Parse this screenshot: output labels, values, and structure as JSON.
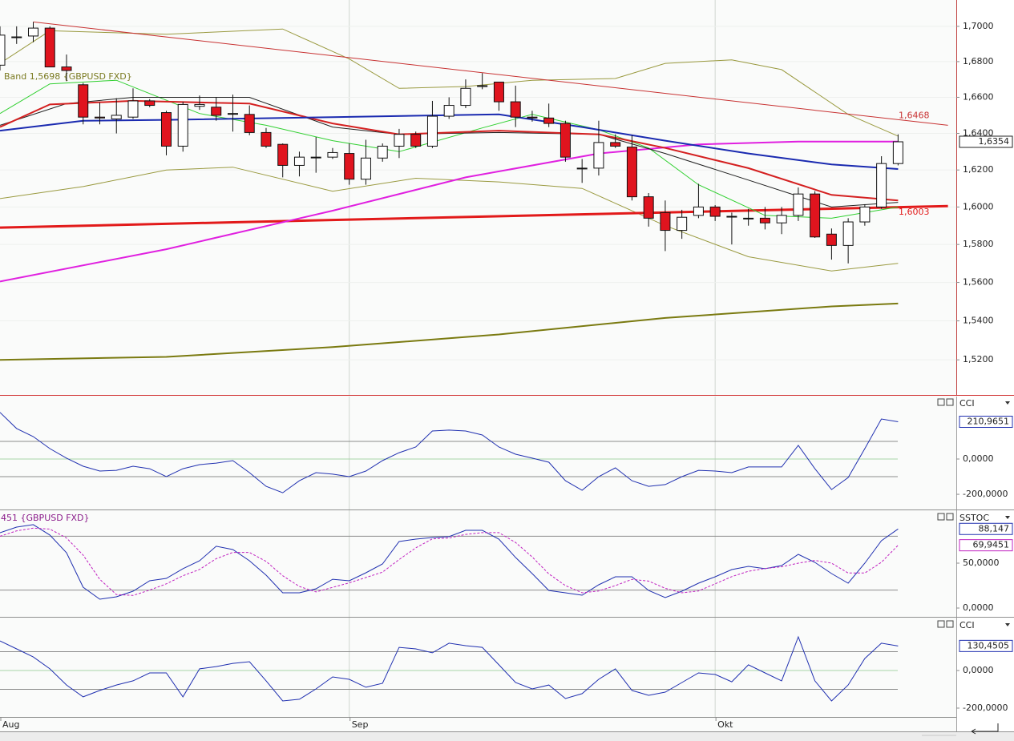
{
  "chart_data": [
    {
      "type": "candlestick",
      "log_scale": true,
      "grid": true,
      "legend": "Band 1,5698 {GBPUSD FXD}",
      "last_label": "1,6354",
      "up_color": "#ffffff",
      "down_color": "#e0141e",
      "xlim": [
        0,
        57.5
      ],
      "ylim": [
        1.5022,
        1.7151
      ],
      "yticks": [
        {
          "value": 1.7,
          "label": "1,7000"
        },
        {
          "value": 1.68,
          "label": "1,6800"
        },
        {
          "value": 1.66,
          "label": "1,6600"
        },
        {
          "value": 1.64,
          "label": "1,6400"
        },
        {
          "value": 1.62,
          "label": "1,6200"
        },
        {
          "value": 1.6,
          "label": "1,6000"
        },
        {
          "value": 1.58,
          "label": "1,5800"
        },
        {
          "value": 1.56,
          "label": "1,5600"
        },
        {
          "value": 1.54,
          "label": "1,5400"
        },
        {
          "value": 1.52,
          "label": "1,5200"
        }
      ],
      "x": [
        0,
        1,
        2,
        3,
        4,
        5,
        6,
        7,
        8,
        9,
        10,
        11,
        12,
        13,
        14,
        15,
        16,
        17,
        18,
        19,
        20,
        21,
        22,
        23,
        24,
        25,
        26,
        27,
        28,
        29,
        30,
        31,
        32,
        33,
        34,
        35,
        36,
        37,
        38,
        39,
        40,
        41,
        42,
        43,
        44,
        45,
        46,
        47,
        48,
        49,
        50,
        51,
        52,
        53,
        54
      ],
      "open": [
        1.678,
        1.694,
        1.6945,
        1.699,
        1.677,
        1.667,
        1.649,
        1.648,
        1.649,
        1.658,
        1.6515,
        1.633,
        1.655,
        1.6545,
        1.651,
        1.6505,
        1.6405,
        1.634,
        1.6225,
        1.627,
        1.627,
        1.629,
        1.615,
        1.6265,
        1.633,
        1.6395,
        1.633,
        1.6495,
        1.6555,
        1.666,
        1.6685,
        1.6575,
        1.649,
        1.6485,
        1.6455,
        1.621,
        1.621,
        1.635,
        1.6325,
        1.6055,
        1.597,
        1.5875,
        1.5955,
        1.6,
        1.595,
        1.594,
        1.594,
        1.5915,
        1.5955,
        1.607,
        1.5855,
        1.5795,
        1.592,
        1.6,
        1.6235
      ],
      "high": [
        1.7,
        1.7,
        1.7025,
        1.7,
        1.684,
        1.668,
        1.657,
        1.6595,
        1.665,
        1.659,
        1.6525,
        1.6575,
        1.661,
        1.66,
        1.6615,
        1.6555,
        1.643,
        1.6345,
        1.63,
        1.638,
        1.632,
        1.6345,
        1.6365,
        1.6345,
        1.6425,
        1.641,
        1.658,
        1.66,
        1.67,
        1.6735,
        1.6685,
        1.6665,
        1.6525,
        1.6565,
        1.647,
        1.626,
        1.647,
        1.6395,
        1.639,
        1.6075,
        1.6035,
        1.5985,
        1.6125,
        1.601,
        1.597,
        1.599,
        1.6,
        1.6,
        1.6105,
        1.6085,
        1.5885,
        1.594,
        1.6015,
        1.6275,
        1.6395
      ],
      "low": [
        1.675,
        1.69,
        1.691,
        1.677,
        1.669,
        1.645,
        1.645,
        1.64,
        1.648,
        1.6545,
        1.628,
        1.63,
        1.653,
        1.647,
        1.641,
        1.639,
        1.632,
        1.616,
        1.6165,
        1.6185,
        1.626,
        1.612,
        1.612,
        1.6245,
        1.6265,
        1.632,
        1.632,
        1.648,
        1.654,
        1.6645,
        1.6525,
        1.6435,
        1.6465,
        1.6435,
        1.6245,
        1.613,
        1.617,
        1.632,
        1.6035,
        1.5895,
        1.5765,
        1.583,
        1.594,
        1.5925,
        1.58,
        1.59,
        1.588,
        1.5855,
        1.5925,
        1.5835,
        1.572,
        1.57,
        1.59,
        1.599,
        1.6225
      ],
      "close": [
        1.695,
        1.694,
        1.699,
        1.677,
        1.675,
        1.649,
        1.6485,
        1.65,
        1.658,
        1.6555,
        1.633,
        1.656,
        1.656,
        1.65,
        1.651,
        1.6405,
        1.633,
        1.6225,
        1.627,
        1.627,
        1.6295,
        1.615,
        1.6265,
        1.633,
        1.6395,
        1.633,
        1.6495,
        1.6555,
        1.665,
        1.6665,
        1.6575,
        1.649,
        1.6485,
        1.6455,
        1.627,
        1.621,
        1.635,
        1.633,
        1.6055,
        1.594,
        1.5875,
        1.5945,
        1.6,
        1.595,
        1.595,
        1.594,
        1.5915,
        1.5955,
        1.607,
        1.584,
        1.5795,
        1.592,
        1.6,
        1.6235,
        1.6354
      ],
      "overlays": [
        {
          "color": "#7a7a10",
          "line_width": 2,
          "x": [
            0,
            10,
            20,
            30,
            40,
            50,
            54
          ],
          "values": [
            1.52,
            1.5215,
            1.5265,
            1.533,
            1.5415,
            1.5475,
            1.549
          ]
        },
        {
          "color": "#9a9a40",
          "line_width": 1,
          "x": [
            0,
            3,
            10,
            17,
            21,
            24,
            28,
            32,
            37,
            40,
            44,
            47,
            51,
            54
          ],
          "values": [
            1.679,
            1.6975,
            1.6955,
            1.6985,
            1.6815,
            1.665,
            1.666,
            1.6695,
            1.6705,
            1.679,
            1.681,
            1.6755,
            1.6505,
            1.6385
          ]
        },
        {
          "color": "#9a9a40",
          "line_width": 1,
          "x": [
            0,
            5,
            10,
            14,
            20,
            25,
            30,
            35,
            40,
            45,
            50,
            54
          ],
          "values": [
            1.6045,
            1.611,
            1.62,
            1.6215,
            1.6085,
            1.6155,
            1.6135,
            1.61,
            1.59,
            1.5735,
            1.566,
            1.57
          ]
        },
        {
          "color": "#c83232",
          "line_width": 1,
          "end_label": "1,6468",
          "x": [
            2,
            57
          ],
          "values": [
            1.7025,
            1.6445
          ]
        },
        {
          "color": "#e21a1a",
          "line_width": 3,
          "end_label": "1,6003",
          "x": [
            0,
            57
          ],
          "values": [
            1.589,
            1.6005
          ]
        },
        {
          "color": "#e020e0",
          "line_width": 2,
          "x": [
            0,
            10,
            20,
            28,
            36,
            42,
            48,
            54
          ],
          "values": [
            1.5605,
            1.5775,
            1.598,
            1.616,
            1.629,
            1.634,
            1.6355,
            1.6355
          ]
        },
        {
          "color": "#30d030",
          "line_width": 1,
          "x": [
            0,
            3,
            7,
            12,
            16,
            20,
            24,
            29,
            32,
            36,
            39,
            42,
            46,
            50,
            54
          ],
          "values": [
            1.651,
            1.6675,
            1.6695,
            1.651,
            1.6445,
            1.636,
            1.63,
            1.643,
            1.6505,
            1.642,
            1.632,
            1.612,
            1.5955,
            1.594,
            1.6
          ]
        },
        {
          "color": "#202020",
          "line_width": 1,
          "x": [
            0,
            4,
            8,
            15,
            20,
            24,
            30,
            36,
            40,
            45,
            50,
            54
          ],
          "values": [
            1.6445,
            1.6565,
            1.66,
            1.66,
            1.6435,
            1.6395,
            1.6405,
            1.6395,
            1.629,
            1.6145,
            1.6,
            1.6025
          ]
        },
        {
          "color": "#d42020",
          "line_width": 2,
          "x": [
            0,
            3,
            8,
            15,
            20,
            24,
            30,
            36,
            40,
            45,
            50,
            54
          ],
          "values": [
            1.6435,
            1.656,
            1.658,
            1.6565,
            1.6455,
            1.6395,
            1.6415,
            1.6395,
            1.632,
            1.621,
            1.6065,
            1.6035
          ]
        },
        {
          "color": "#1a2ab0",
          "line_width": 2,
          "x": [
            0,
            5,
            10,
            20,
            30,
            35,
            40,
            45,
            50,
            54
          ],
          "values": [
            1.6415,
            1.647,
            1.6475,
            1.649,
            1.6505,
            1.6435,
            1.636,
            1.629,
            1.623,
            1.6205
          ]
        }
      ]
    },
    {
      "type": "line",
      "title": "CCI",
      "xlim": [
        0,
        57.5
      ],
      "ylim": [
        -286,
        354
      ],
      "yticks": [
        {
          "value": 0,
          "label": "0,0000"
        },
        {
          "value": -200,
          "label": "-200,0000"
        }
      ],
      "levels": [
        100,
        0,
        -100
      ],
      "level_colors": [
        "#8c8c8c",
        "#a8d4a8",
        "#8c8c8c"
      ],
      "x": [
        0,
        1,
        2,
        3,
        4,
        5,
        6,
        7,
        8,
        9,
        10,
        11,
        12,
        13,
        14,
        15,
        16,
        17,
        18,
        19,
        20,
        21,
        22,
        23,
        24,
        25,
        26,
        27,
        28,
        29,
        30,
        31,
        32,
        33,
        34,
        35,
        36,
        37,
        38,
        39,
        40,
        41,
        42,
        43,
        44,
        45,
        46,
        47,
        48,
        49,
        50,
        51,
        52,
        53,
        54
      ],
      "series": [
        {
          "color": "#2030b0",
          "last_label": "210,9651",
          "values": [
            264,
            173,
            127,
            59,
            5,
            -41,
            -68,
            -64,
            -41,
            -55,
            -100,
            -55,
            -32,
            -23,
            -9,
            -77,
            -155,
            -191,
            -123,
            -77,
            -86,
            -100,
            -68,
            -9,
            36,
            68,
            159,
            164,
            159,
            136,
            68,
            27,
            5,
            -18,
            -123,
            -177,
            -100,
            -50,
            -123,
            -155,
            -145,
            -100,
            -64,
            -68,
            -77,
            -45,
            -45,
            -45,
            77,
            -55,
            -173,
            -105,
            59,
            227,
            210.9651
          ]
        }
      ]
    },
    {
      "type": "line",
      "title": "SSTOC",
      "legend": "451 {GBPUSD FXD}",
      "xlim": [
        0,
        57.5
      ],
      "ylim": [
        -9.8,
        108.9
      ],
      "yticks": [
        {
          "value": 50,
          "label": "50,0000"
        },
        {
          "value": 0,
          "label": "0,0000"
        }
      ],
      "levels": [
        80,
        20
      ],
      "level_colors": [
        "#8c8c8c",
        "#8c8c8c"
      ],
      "x": [
        0,
        1,
        2,
        3,
        4,
        5,
        6,
        7,
        8,
        9,
        10,
        11,
        12,
        13,
        14,
        15,
        16,
        17,
        18,
        19,
        20,
        21,
        22,
        23,
        24,
        25,
        26,
        27,
        28,
        29,
        30,
        31,
        32,
        33,
        34,
        35,
        36,
        37,
        38,
        39,
        40,
        41,
        42,
        43,
        44,
        45,
        46,
        47,
        48,
        49,
        50,
        51,
        52,
        53,
        54
      ],
      "series": [
        {
          "color": "#2030b0",
          "last_label": "88,147",
          "values": [
            83.9,
            90.2,
            92.9,
            81.3,
            61.6,
            23.2,
            9.8,
            12.5,
            18.8,
            30.4,
            33.0,
            43.8,
            52.7,
            68.8,
            65.2,
            52.7,
            36.6,
            17.0,
            17.0,
            21.4,
            32.1,
            30.4,
            39.3,
            49.1,
            74.1,
            76.8,
            78.6,
            79.5,
            86.6,
            86.6,
            76.8,
            56.3,
            38.4,
            19.6,
            17.0,
            14.3,
            25.9,
            34.8,
            34.8,
            19.6,
            11.6,
            18.8,
            27.7,
            34.8,
            42.9,
            46.4,
            43.8,
            47.3,
            59.8,
            50.9,
            38.4,
            27.7,
            50.0,
            75.0,
            88.147
          ]
        },
        {
          "color": "#c020c0",
          "dashed": true,
          "last_label": "69,9451",
          "values": [
            80,
            86,
            89,
            88,
            78,
            59,
            32,
            15,
            14,
            20,
            27,
            36,
            43,
            55,
            62,
            62,
            52,
            36,
            24,
            18,
            23,
            28,
            34,
            40,
            54,
            67,
            77,
            78,
            82,
            84,
            84,
            73,
            57,
            38,
            25,
            17,
            19,
            25,
            32,
            30,
            22,
            17,
            19,
            27,
            35,
            41,
            44,
            46,
            50,
            53,
            50,
            39,
            39,
            51,
            69.9451
          ]
        }
      ]
    },
    {
      "type": "line",
      "title": "CCI",
      "xlim": [
        0,
        57.5
      ],
      "ylim": [
        -247,
        281
      ],
      "yticks": [
        {
          "value": 0,
          "label": "0,0000"
        },
        {
          "value": -200,
          "label": "-200,0000"
        }
      ],
      "levels": [
        100,
        0,
        -100
      ],
      "level_colors": [
        "#8c8c8c",
        "#a8d4a8",
        "#8c8c8c"
      ],
      "xticks": [
        {
          "value": 0,
          "label": "Aug"
        },
        {
          "value": 21,
          "label": "Sep"
        },
        {
          "value": 43,
          "label": "Okt"
        }
      ],
      "x": [
        0,
        1,
        2,
        3,
        4,
        5,
        6,
        7,
        8,
        9,
        10,
        11,
        12,
        13,
        14,
        15,
        16,
        17,
        18,
        19,
        20,
        21,
        22,
        23,
        24,
        25,
        26,
        27,
        28,
        29,
        30,
        31,
        32,
        33,
        34,
        35,
        36,
        37,
        38,
        39,
        40,
        41,
        42,
        43,
        44,
        45,
        46,
        47,
        48,
        49,
        50,
        51,
        52,
        53,
        54
      ],
      "series": [
        {
          "color": "#2030b0",
          "last_label": "130,4505",
          "values": [
            157,
            115,
            72,
            9,
            -77,
            -140,
            -106,
            -77,
            -55,
            -13,
            -13,
            -140,
            9,
            21,
            38,
            47,
            -55,
            -162,
            -153,
            -98,
            -34,
            -47,
            -89,
            -68,
            123,
            115,
            94,
            145,
            132,
            123,
            30,
            -64,
            -98,
            -77,
            -149,
            -123,
            -47,
            9,
            -106,
            -132,
            -115,
            -64,
            -13,
            -21,
            -60,
            30,
            -13,
            -55,
            179,
            -55,
            -162,
            -77,
            64,
            145,
            130.4505
          ]
        }
      ]
    }
  ]
}
